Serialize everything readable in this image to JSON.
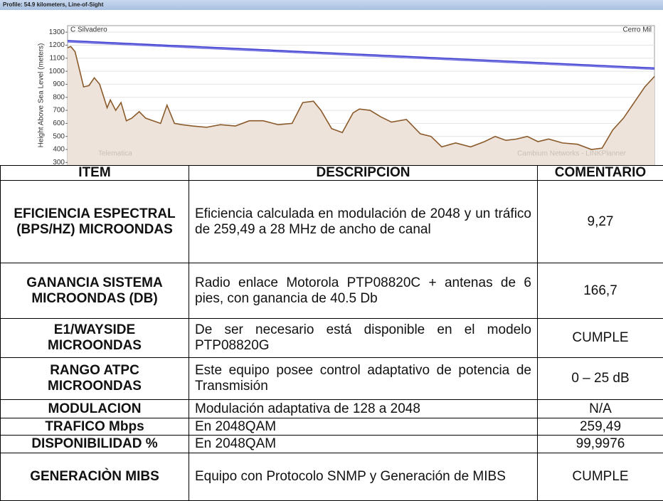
{
  "chart_data": {
    "type": "area",
    "header": "Profile: 54.9 kilometers, Line-of-Sight",
    "y_label": "Height Above Sea Level (meters)",
    "site_left": "C Silvadero",
    "site_right": "Cerro Mil",
    "watermark_left": "Telematica",
    "watermark_right": "Cambium Networks - LINKPlanner",
    "xlim": [
      0,
      54.9
    ],
    "ylim": [
      280,
      1350
    ],
    "yticks": [
      300,
      400,
      500,
      600,
      700,
      800,
      900,
      1000,
      1100,
      1200,
      1300
    ],
    "grid": true,
    "series": [
      {
        "color": "#8b5a2b",
        "fill": "#ede3da",
        "x": [
          0,
          0.3,
          0.7,
          1.0,
          1.5,
          2.0,
          2.5,
          3.0,
          3.7,
          4.0,
          4.5,
          5.0,
          5.5,
          6.0,
          6.7,
          7.3,
          8.0,
          8.7,
          9.3,
          10.0,
          10.7,
          11.7,
          13.0,
          14.3,
          15.7,
          17.0,
          18.3,
          19.7,
          21.0,
          22.0,
          23.0,
          23.7,
          24.7,
          25.7,
          26.7,
          27.3,
          28.3,
          29.3,
          30.3,
          31.7,
          33.0,
          34.0,
          35.0,
          36.3,
          37.7,
          39.0,
          40.0,
          41.0,
          42.0,
          43.0,
          44.0,
          45.0,
          46.3,
          47.7,
          49.0,
          50.0,
          51.0,
          52.0,
          53.0,
          54.0,
          54.9
        ],
        "values": [
          1180,
          1190,
          1150,
          1050,
          880,
          890,
          950,
          900,
          720,
          780,
          700,
          760,
          620,
          640,
          690,
          640,
          620,
          600,
          740,
          600,
          590,
          580,
          570,
          590,
          580,
          620,
          620,
          590,
          600,
          760,
          770,
          700,
          560,
          530,
          680,
          710,
          700,
          650,
          610,
          630,
          520,
          500,
          420,
          450,
          420,
          460,
          500,
          470,
          480,
          500,
          460,
          480,
          450,
          440,
          400,
          410,
          550,
          640,
          760,
          880,
          960
        ]
      },
      {
        "color": "#3a3ad0",
        "x": [
          0,
          54.9
        ],
        "values": [
          1235,
          1025
        ]
      },
      {
        "color": "#6a6ae0",
        "x": [
          0,
          54.9
        ],
        "values": [
          1225,
          1015
        ]
      }
    ]
  },
  "table": {
    "header": [
      "ITEM",
      "DESCRIPCION",
      "COMENTARIO"
    ],
    "rows": [
      [
        "EFICIENCIA ESPECTRAL (BPS/HZ) MICROONDAS",
        "Eficiencia calculada en modulación de 2048 y un tráfico de 259,49 a 28 MHz de ancho de canal",
        "9,27"
      ],
      [
        "GANANCIA SISTEMA MICROONDAS (DB)",
        "Radio enlace Motorola PTP08820C + antenas de 6 pies, con ganancia de 40.5 Db",
        "166,7"
      ],
      [
        "E1/WAYSIDE MICROONDAS",
        "De ser necesario está disponible en el modelo PTP08820G",
        "CUMPLE"
      ],
      [
        "RANGO ATPC MICROONDAS",
        "Este equipo posee control adaptativo de potencia de Transmisión",
        "0 – 25 dB"
      ],
      [
        "MODULACION",
        "Modulación adaptativa de 128 a 2048",
        "N/A"
      ],
      [
        "TRAFICO Mbps",
        "En 2048QAM",
        "259,49"
      ],
      [
        "DISPONIBILIDAD %",
        "En 2048QAM",
        "99,9976"
      ],
      [
        "GENERACIÒN MIBS",
        "Equipo con Protocolo SNMP y Generación de MIBS",
        "CUMPLE"
      ]
    ]
  }
}
